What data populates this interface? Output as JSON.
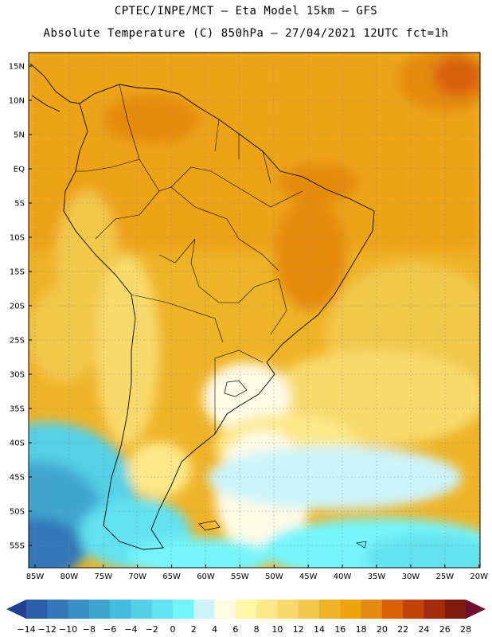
{
  "title_line1": "CPTEC/INPE/MCT –  Eta Model 15km – GFS",
  "title_line2": "Absolute Temperature (C) 850hPa – 27/04/2021 12UTC fct=1h",
  "map": {
    "lat_labels": [
      "15N",
      "10N",
      "5N",
      "EQ",
      "5S",
      "10S",
      "15S",
      "20S",
      "25S",
      "30S",
      "35S",
      "40S",
      "45S",
      "50S",
      "55S"
    ],
    "lon_labels": [
      "85W",
      "80W",
      "75W",
      "70W",
      "65W",
      "60W",
      "55W",
      "50W",
      "45W",
      "40W",
      "35W",
      "30W",
      "25W",
      "20W"
    ]
  },
  "colorbar": {
    "labels": [
      "-14",
      "-12",
      "-10",
      "-8",
      "-6",
      "-4",
      "-2",
      "0",
      "2",
      "4",
      "6",
      "8",
      "10",
      "12",
      "14",
      "16",
      "18",
      "20",
      "22",
      "24",
      "26",
      "28"
    ],
    "colors": [
      "#1f3f8f",
      "#2b5ea8",
      "#3377b8",
      "#3a8fc6",
      "#3fa6d0",
      "#47bcdc",
      "#54d0e6",
      "#62e2ef",
      "#74f5fb",
      "#cdf4fa",
      "#fffbe6",
      "#fff7a8",
      "#fde98a",
      "#f8da6c",
      "#f2c84c",
      "#efb327",
      "#eda312",
      "#e48a10",
      "#d96108",
      "#c04408",
      "#a52a0c",
      "#7f1a10",
      "#6e0f2e"
    ]
  }
}
